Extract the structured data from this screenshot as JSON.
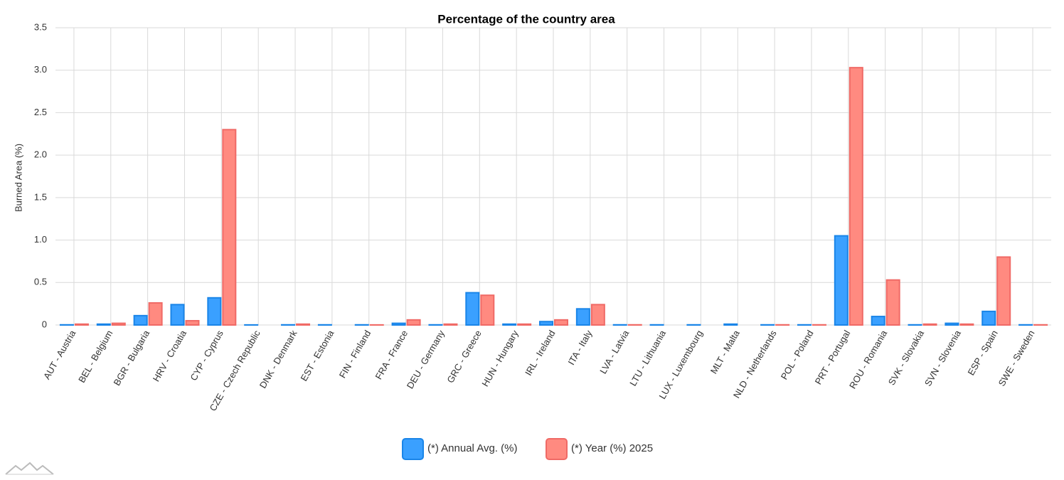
{
  "chart_data": {
    "type": "bar",
    "title": "Percentage of the country area",
    "y_label": "Burned Area (%)",
    "categories": [
      "AUT - Austria",
      "BEL - Belgium",
      "BGR - Bulgaria",
      "HRV - Croatia",
      "CYP - Cyprus",
      "CZE - Czech Republic",
      "DNK - Denmark",
      "EST - Estonia",
      "FIN - Finland",
      "FRA - France",
      "DEU - Germany",
      "GRC - Greece",
      "HUN - Hungary",
      "IRL - Ireland",
      "ITA - Italy",
      "LVA - Latvia",
      "LTU - Lithuania",
      "LUX - Luxembourg",
      "MLT - Malta",
      "NLD - Netherlands",
      "POL - Poland",
      "PRT - Portugal",
      "ROU - Romania",
      "SVK - Slovakia",
      "SVN - Slovenia",
      "ESP - Spain",
      "SWE - Sweden"
    ],
    "series": [
      {
        "name": "(*) Annual Avg. (%)",
        "color": "#3aa0ff",
        "stroke": "#1a85e8",
        "values": [
          0.002,
          0.01,
          0.11,
          0.24,
          0.32,
          0.001,
          0.002,
          0.002,
          0.002,
          0.02,
          0.002,
          0.38,
          0.01,
          0.04,
          0.19,
          0.002,
          0.002,
          0.002,
          0.01,
          0.002,
          0.002,
          1.05,
          0.1,
          0.002,
          0.02,
          0.16,
          0.002
        ]
      },
      {
        "name": "(*) Year (%) 2025",
        "color": "#ff8a80",
        "stroke": "#f06a66",
        "values": [
          0.01,
          0.02,
          0.26,
          0.05,
          2.3,
          0,
          0.01,
          0,
          0.001,
          0.06,
          0.01,
          0.35,
          0.01,
          0.06,
          0.24,
          0.002,
          0,
          0,
          0,
          0.002,
          0.002,
          3.03,
          0.53,
          0.01,
          0.01,
          0.8,
          0.002
        ]
      }
    ],
    "ylim": [
      0,
      3.5
    ],
    "yticks": [
      0,
      0.5,
      {
        "value": 1,
        "label": "1.0"
      },
      1.5,
      {
        "value": 2,
        "label": "2.0"
      },
      2.5,
      {
        "value": 3,
        "label": "3.0"
      },
      3.5
    ],
    "grid": true
  }
}
